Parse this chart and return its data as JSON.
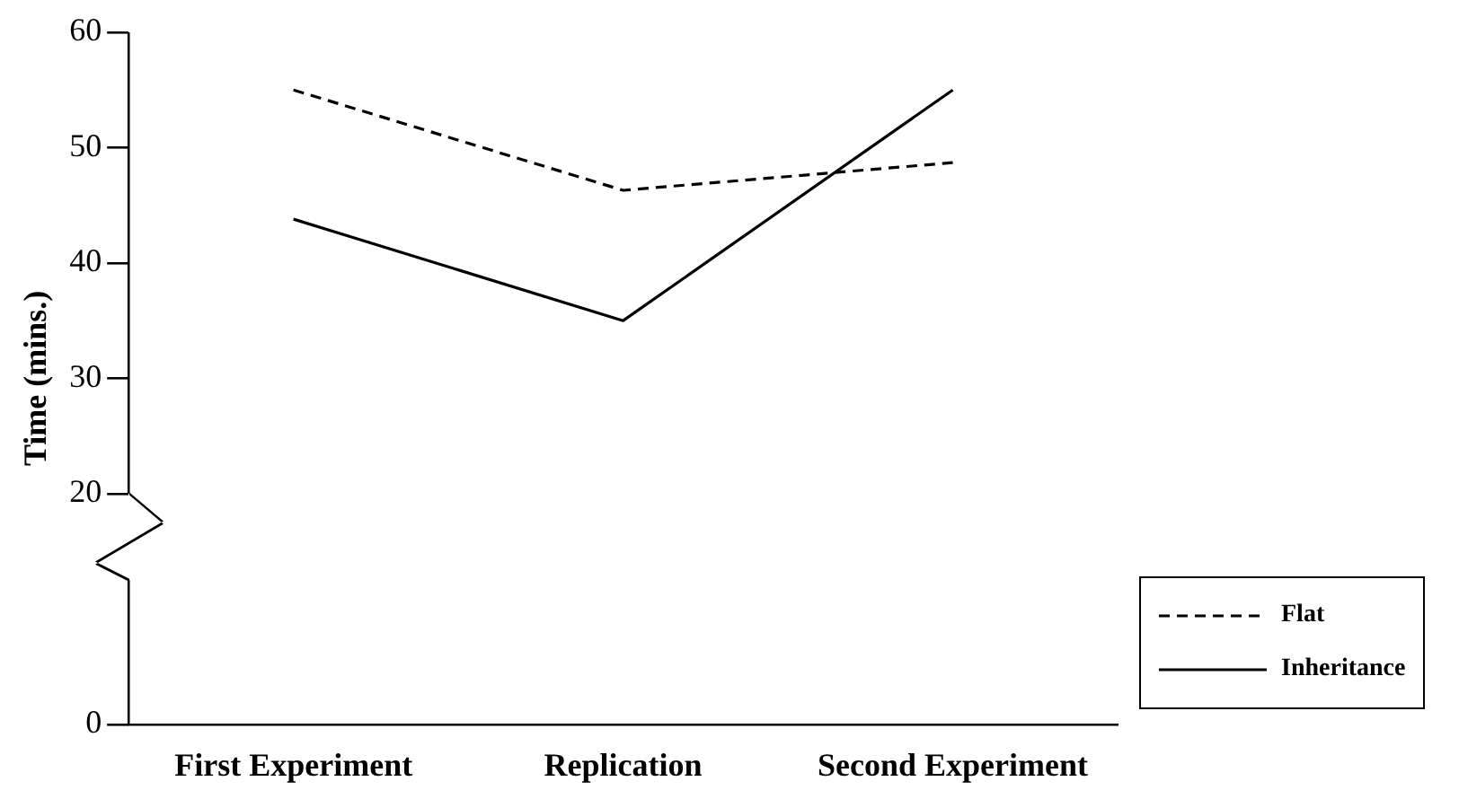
{
  "chart_data": {
    "type": "line",
    "ylabel": "Time (mins.)",
    "categories": [
      "First Experiment",
      "Replication",
      "Second Experiment"
    ],
    "series": [
      {
        "name": "Flat",
        "color": "#000000",
        "line_style": "dashed",
        "values": [
          55,
          46.3,
          48.7
        ]
      },
      {
        "name": "Inheritance",
        "color": "#000000",
        "line_style": "solid",
        "values": [
          43.8,
          35,
          55
        ]
      }
    ],
    "ylim": [
      0,
      60
    ],
    "yticks": [
      0,
      20,
      30,
      40,
      50,
      60
    ],
    "grid": false,
    "legend": "bottom right",
    "marker": "none"
  }
}
